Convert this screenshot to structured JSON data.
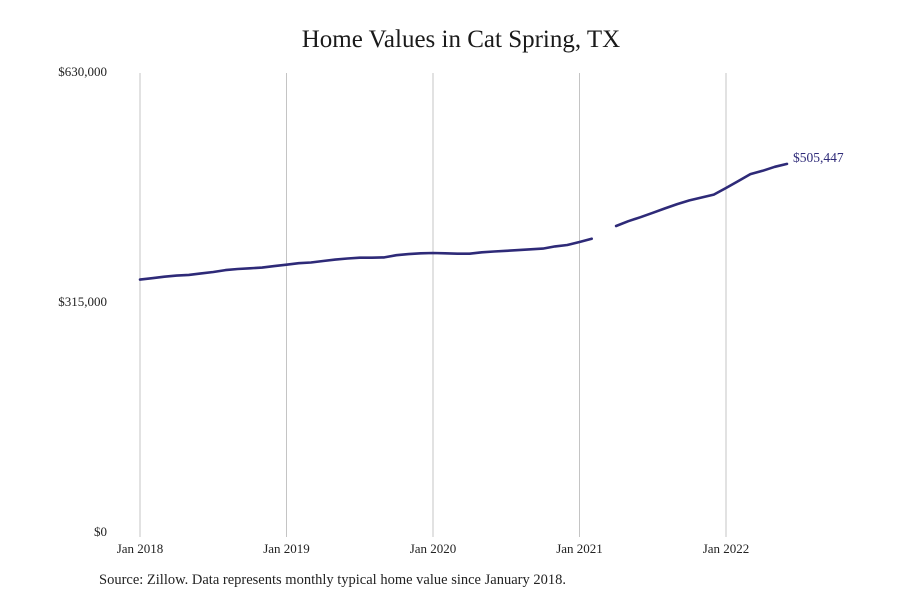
{
  "chart_data": {
    "type": "line",
    "title": "Home Values in Cat Spring, TX",
    "xlabel": "",
    "ylabel": "",
    "ylim": [
      0,
      630000
    ],
    "y_ticks": [
      {
        "value": 0,
        "label": "$0"
      },
      {
        "value": 315000,
        "label": "$315,000"
      },
      {
        "value": 630000,
        "label": "$630,000"
      }
    ],
    "x_ticks": [
      "Jan 2018",
      "Jan 2019",
      "Jan 2020",
      "Jan 2021",
      "Jan 2022"
    ],
    "grid": "vertical",
    "series": [
      {
        "color": "#2e2a78",
        "segments": [
          {
            "x": [
              "2018-01",
              "2018-02",
              "2018-03",
              "2018-04",
              "2018-05",
              "2018-06",
              "2018-07",
              "2018-08",
              "2018-09",
              "2018-10",
              "2018-11",
              "2018-12",
              "2019-01",
              "2019-02",
              "2019-03",
              "2019-04",
              "2019-05",
              "2019-06",
              "2019-07",
              "2019-08",
              "2019-09",
              "2019-10",
              "2019-11",
              "2019-12",
              "2020-01",
              "2020-02",
              "2020-03",
              "2020-04",
              "2020-05",
              "2020-06",
              "2020-07",
              "2020-08",
              "2020-09",
              "2020-10",
              "2020-11",
              "2020-12",
              "2021-01",
              "2021-02"
            ],
            "y": [
              347000,
              349000,
              351000,
              352500,
              353500,
              355500,
              357500,
              360000,
              361500,
              362500,
              363500,
              365500,
              367500,
              369500,
              370500,
              372500,
              374500,
              376000,
              377000,
              377000,
              377500,
              380500,
              382000,
              383000,
              383500,
              383000,
              382500,
              382500,
              384500,
              385500,
              386500,
              387500,
              388500,
              389500,
              392500,
              394500,
              398500,
              403000
            ]
          },
          {
            "x": [
              "2021-04",
              "2021-05",
              "2021-06",
              "2021-07",
              "2021-08",
              "2021-09",
              "2021-10",
              "2021-11",
              "2021-12",
              "2022-01",
              "2022-02",
              "2022-03",
              "2022-04",
              "2022-05",
              "2022-06"
            ],
            "y": [
              420500,
              427000,
              432500,
              438500,
              444500,
              450500,
              455500,
              459500,
              463500,
              472500,
              482000,
              491500,
              496000,
              501500,
              505447
            ]
          }
        ]
      }
    ],
    "end_label": "$505,447"
  },
  "source_note": "Source: Zillow. Data represents monthly typical home value since January 2018."
}
